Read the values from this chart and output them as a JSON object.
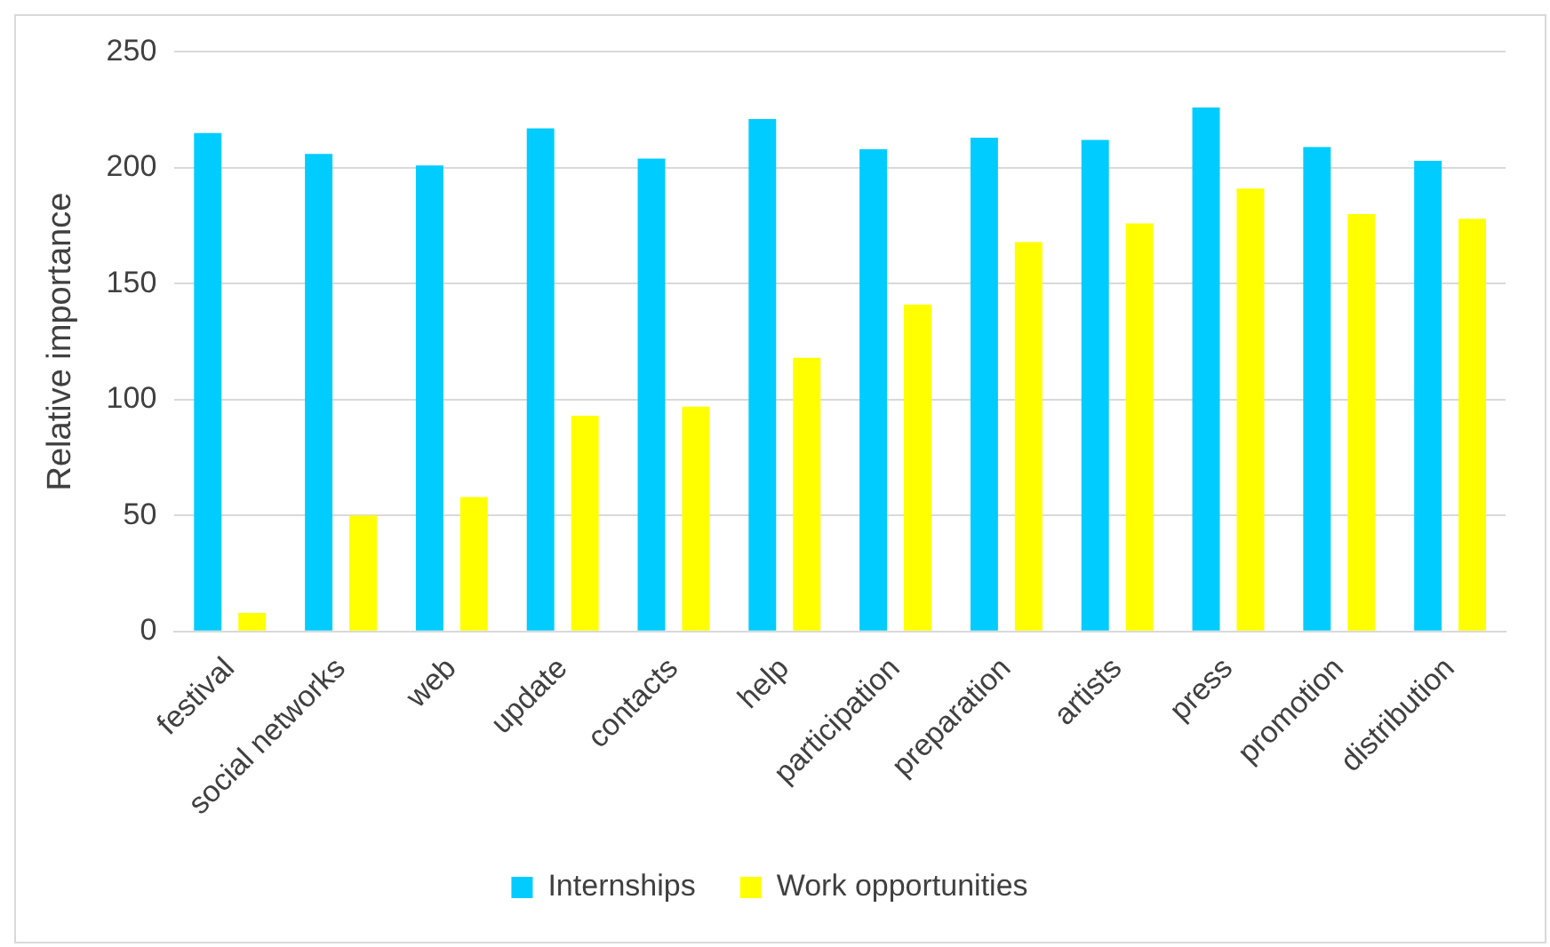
{
  "chart_data": {
    "type": "bar",
    "ylabel": "Relative importance",
    "categories": [
      "festival",
      "social networks",
      "web",
      "update",
      "contacts",
      "help",
      "participation",
      "preparation",
      "artists",
      "press",
      "promotion",
      "distribution"
    ],
    "series": [
      {
        "name": "Internships",
        "color": "#00ccff",
        "values": [
          215,
          206,
          201,
          217,
          204,
          221,
          208,
          213,
          212,
          226,
          209,
          203
        ]
      },
      {
        "name": "Work opportunities",
        "color": "#ffff00",
        "values": [
          8,
          50,
          58,
          93,
          97,
          118,
          141,
          168,
          176,
          191,
          180,
          178
        ]
      }
    ],
    "ylim": [
      0,
      250
    ],
    "yticks": [
      0,
      50,
      100,
      150,
      200,
      250
    ],
    "grid": "y",
    "legend": "bottom"
  }
}
